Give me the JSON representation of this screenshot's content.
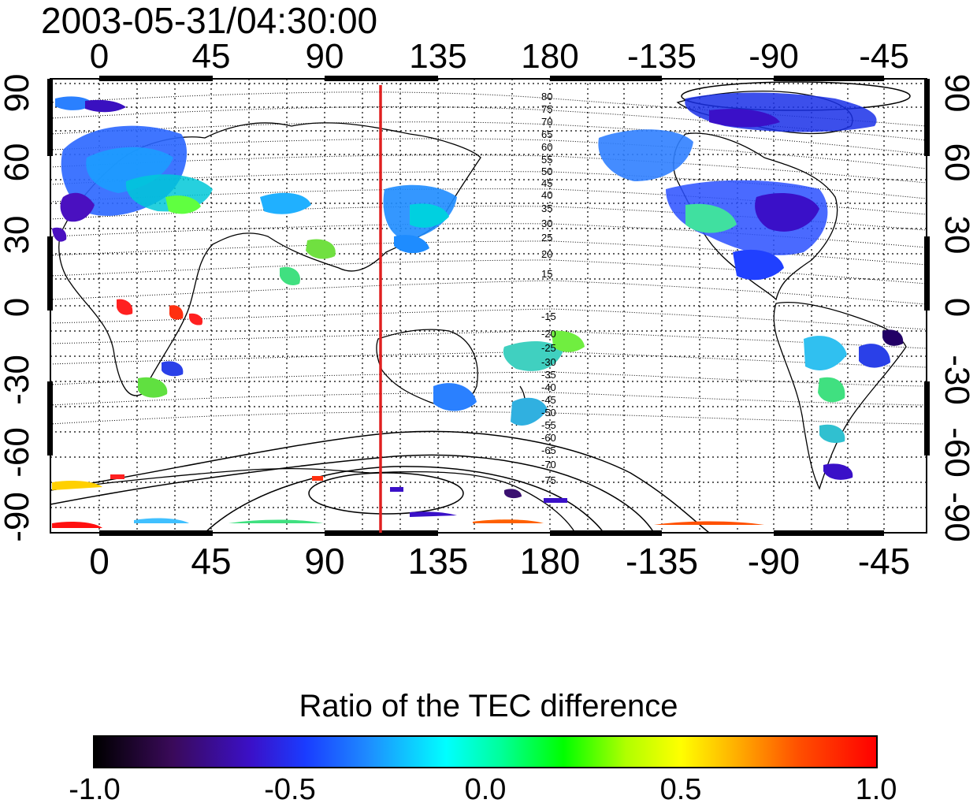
{
  "title": "2003-05-31/04:30:00",
  "x_ticks": [
    "0",
    "45",
    "90",
    "135",
    "180",
    "-135",
    "-90",
    "-45"
  ],
  "y_ticks_left": [
    "90",
    "60",
    "30",
    "0",
    "-30",
    "-60",
    "-90"
  ],
  "y_ticks_right": [
    "90",
    "60",
    "30",
    "0",
    "-30",
    "-60",
    "-90"
  ],
  "contour_labels_north": [
    "80",
    "75",
    "70",
    "65",
    "60",
    "55",
    "50",
    "45",
    "40",
    "35",
    "30",
    "25",
    "20",
    "15"
  ],
  "contour_labels_south": [
    "-15",
    "-20",
    "-25",
    "-30",
    "-35",
    "-40",
    "-45",
    "-50",
    "-55",
    "-60",
    "-65",
    "-70",
    "-75"
  ],
  "colorbar": {
    "title": "Ratio of the TEC difference",
    "ticks": [
      "-1.0",
      "-0.5",
      "0.0",
      "0.5",
      "1.0"
    ],
    "range": [
      -1.0,
      1.0
    ]
  },
  "map": {
    "lon_range": [
      -20,
      340
    ],
    "lat_range": [
      -90,
      90
    ],
    "marker_longitude": 113,
    "marker_color": "#e02020",
    "grid": "dotted"
  }
}
